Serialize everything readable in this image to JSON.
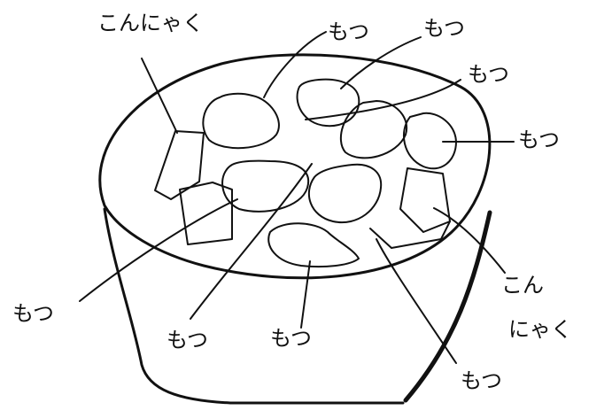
{
  "labels": {
    "konnyaku_top": "こんにゃく",
    "motsu_top_1": "もつ",
    "motsu_top_2": "もつ",
    "motsu_top_right": "もつ",
    "motsu_right": "もつ",
    "konnyaku_right_1": "こん",
    "konnyaku_right_2": "にゃく",
    "motsu_left": "もつ",
    "motsu_bottom_1": "もつ",
    "motsu_bottom_2": "もつ",
    "motsu_bottom_right": "もつ"
  },
  "colors": {
    "ink": "#111111",
    "paper": "#ffffff"
  }
}
